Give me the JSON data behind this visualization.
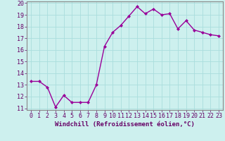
{
  "x": [
    0,
    1,
    2,
    3,
    4,
    5,
    6,
    7,
    8,
    9,
    10,
    11,
    12,
    13,
    14,
    15,
    16,
    17,
    18,
    19,
    20,
    21,
    22,
    23
  ],
  "y": [
    13.3,
    13.3,
    12.8,
    11.1,
    12.1,
    11.5,
    11.5,
    11.5,
    13.0,
    16.3,
    17.5,
    18.1,
    18.9,
    19.7,
    19.1,
    19.5,
    19.0,
    19.1,
    17.8,
    18.5,
    17.7,
    17.5,
    17.3,
    17.2
  ],
  "xlabel": "Windchill (Refroidissement éolien,°C)",
  "ylim": [
    11,
    20
  ],
  "xlim": [
    -0.5,
    23.5
  ],
  "yticks": [
    11,
    12,
    13,
    14,
    15,
    16,
    17,
    18,
    19,
    20
  ],
  "xticks": [
    0,
    1,
    2,
    3,
    4,
    5,
    6,
    7,
    8,
    9,
    10,
    11,
    12,
    13,
    14,
    15,
    16,
    17,
    18,
    19,
    20,
    21,
    22,
    23
  ],
  "line_color": "#990099",
  "marker": "D",
  "marker_size": 2.0,
  "background_color": "#cdf0ee",
  "grid_color": "#aadddd",
  "border_color": "#888888",
  "xlabel_fontsize": 6.5,
  "tick_fontsize": 6.0,
  "linewidth": 1.0
}
